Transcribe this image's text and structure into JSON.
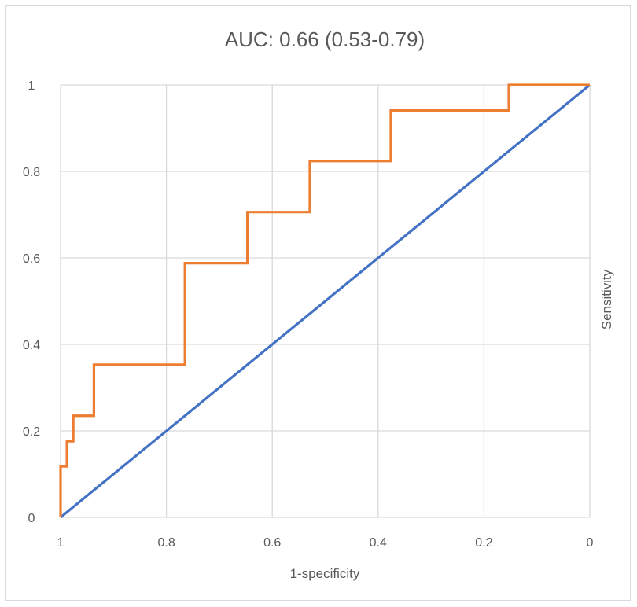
{
  "chart_data": {
    "type": "line",
    "title": "AUC: 0.66 (0.53-0.79)",
    "xlabel": "1-specificity",
    "ylabel": "Sensitivity",
    "x_reversed": true,
    "xlim": [
      1,
      0
    ],
    "ylim": [
      0,
      1
    ],
    "x_ticks": [
      "1",
      "0.8",
      "0.6",
      "0.4",
      "0.2",
      "0"
    ],
    "y_ticks": [
      "0",
      "0.2",
      "0.4",
      "0.6",
      "0.8",
      "1"
    ],
    "grid": true,
    "legend": "none",
    "series": [
      {
        "color": "#ed7d31",
        "style": "step",
        "points": [
          [
            1,
            0
          ],
          [
            1,
            0.118
          ],
          [
            0.988,
            0.118
          ],
          [
            0.988,
            0.176
          ],
          [
            0.976,
            0.176
          ],
          [
            0.976,
            0.235
          ],
          [
            0.937,
            0.235
          ],
          [
            0.937,
            0.353
          ],
          [
            0.765,
            0.353
          ],
          [
            0.765,
            0.588
          ],
          [
            0.647,
            0.588
          ],
          [
            0.647,
            0.706
          ],
          [
            0.529,
            0.706
          ],
          [
            0.529,
            0.824
          ],
          [
            0.376,
            0.824
          ],
          [
            0.376,
            0.941
          ],
          [
            0.153,
            0.941
          ],
          [
            0.153,
            1
          ],
          [
            0,
            1
          ]
        ]
      },
      {
        "color": "#4472c4",
        "style": "line",
        "points": [
          [
            1,
            0
          ],
          [
            0,
            1
          ]
        ]
      }
    ]
  }
}
